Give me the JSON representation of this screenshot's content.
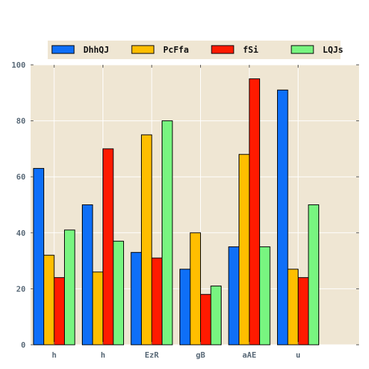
{
  "chart_data": {
    "type": "bar",
    "title": "",
    "xlabel": "",
    "ylabel": "",
    "categories": [
      "h",
      "h",
      "EzR",
      "gB",
      "aAE",
      "u"
    ],
    "series": [
      {
        "name": "DhhQJ",
        "color": "#0e6ff8",
        "values": [
          63,
          50,
          33,
          27,
          35,
          91
        ]
      },
      {
        "name": "PcFfa",
        "color": "#ffbe00",
        "values": [
          32,
          26,
          75,
          40,
          68,
          27
        ]
      },
      {
        "name": "fSi",
        "color": "#ff1a00",
        "values": [
          24,
          70,
          31,
          18,
          95,
          24
        ]
      },
      {
        "name": "LQJs",
        "color": "#78f580",
        "values": [
          41,
          37,
          80,
          21,
          35,
          50
        ]
      }
    ],
    "ylim": [
      0,
      100
    ],
    "yticks": [
      0,
      20,
      40,
      60,
      80,
      100
    ],
    "grid": true,
    "legend_position": "top"
  },
  "colors": {
    "plot_background": "#efe6d3",
    "legend_background": "#efe6d3",
    "grid": "#ffffff",
    "bar_edge": "#000000"
  }
}
